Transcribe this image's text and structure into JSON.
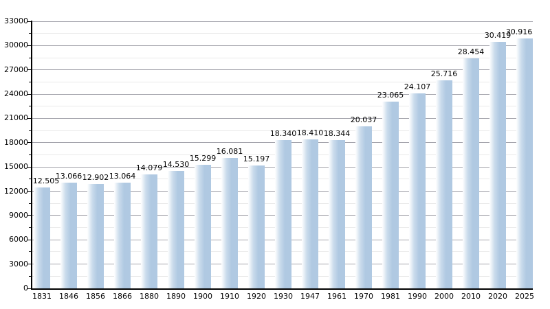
{
  "chart_data": {
    "type": "bar",
    "title": "",
    "xlabel": "",
    "ylabel": "",
    "categories": [
      "1831",
      "1846",
      "1856",
      "1866",
      "1880",
      "1890",
      "1900",
      "1910",
      "1920",
      "1930",
      "1947",
      "1961",
      "1970",
      "1981",
      "1990",
      "2000",
      "2010",
      "2020",
      "2025"
    ],
    "values": [
      12505,
      13066,
      12902,
      13064,
      14079,
      14530,
      15299,
      16081,
      15197,
      18340,
      18410,
      18344,
      20037,
      23065,
      24107,
      25716,
      28454,
      30419,
      30916
    ],
    "value_labels": [
      "12.505",
      "13.066",
      "12.902",
      "13.064",
      "14.079",
      "14.530",
      "15.299",
      "16.081",
      "15.197",
      "18.340",
      "18.410",
      "18.344",
      "20.037",
      "23.065",
      "24.107",
      "25.716",
      "28.454",
      "30.419",
      "30.916"
    ],
    "ylim": [
      0,
      33000
    ],
    "y_major_step": 3000,
    "y_minor_step": 1500,
    "y_tick_labels": [
      "0",
      "3000",
      "6000",
      "9000",
      "12000",
      "15000",
      "18000",
      "21000",
      "24000",
      "27000",
      "30000",
      "33000"
    ],
    "grid": true,
    "legend_position": "none",
    "colors": {
      "bar_fill": "#b0c9e2",
      "bar_fill_mid": "#cbdcec",
      "bar_fill_light": "#ffffff",
      "grid_major": "#a3a3ab",
      "grid_minor": "#e8e8e8",
      "axis": "#000000",
      "text": "#000000",
      "background": "#ffffff"
    }
  }
}
